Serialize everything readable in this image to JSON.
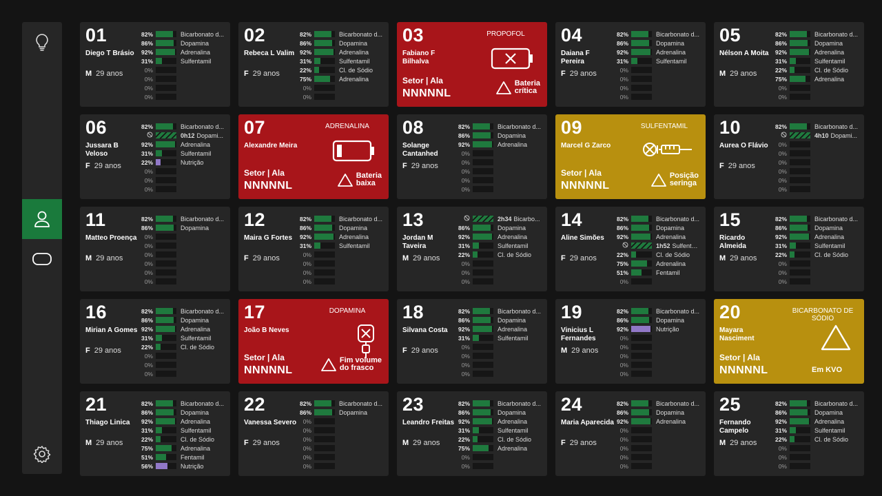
{
  "sidebar": {
    "items": [
      {
        "icon": "lightbulb-icon",
        "active": false
      },
      {
        "icon": "user-icon",
        "active": true
      },
      {
        "icon": "pill-icon",
        "active": false
      },
      {
        "icon": "gear-icon",
        "active": false
      }
    ]
  },
  "colors": {
    "bar_green": "#1f7a3e",
    "bar_purple": "#9178c7",
    "alarm_red": "#a8151a",
    "alarm_yellow": "#b8900f",
    "active_green": "#1a7a3c"
  },
  "beds": [
    {
      "num": "01",
      "name": "Diego T Brásio",
      "sex": "M",
      "age": "29 anos",
      "drugs": [
        [
          "82%",
          "Bicarbonato d..."
        ],
        [
          "86%",
          "Dopamina"
        ],
        [
          "92%",
          "Adrenalina"
        ],
        [
          "31%",
          "Sulfentamil"
        ],
        [
          "0%",
          ""
        ],
        [
          "0%",
          ""
        ],
        [
          "0%",
          ""
        ],
        [
          "0%",
          ""
        ]
      ]
    },
    {
      "num": "02",
      "name": "Rebeca L Valim",
      "sex": "F",
      "age": "29 anos",
      "drugs": [
        [
          "82%",
          "Bicarbonato d..."
        ],
        [
          "86%",
          "Dopamina"
        ],
        [
          "92%",
          "Adrenalina"
        ],
        [
          "31%",
          "Sulfentamil"
        ],
        [
          "22%",
          "Cl. de Sódio"
        ],
        [
          "75%",
          "Adrenalina"
        ],
        [
          "0%",
          ""
        ],
        [
          "0%",
          ""
        ]
      ]
    },
    {
      "num": "03",
      "name": "Fabiano F Bilhalva",
      "alarm": "red",
      "alarm_drug": "PROPOFOL",
      "alarm_icon": "battery-critical-icon",
      "setor": "Setor  |  Ala",
      "code": "NNNNNL",
      "alarm_msg": [
        "Bateria",
        "crítica"
      ]
    },
    {
      "num": "04",
      "name": "Daiana F Pereira",
      "sex": "F",
      "age": "29 anos",
      "drugs": [
        [
          "82%",
          "Bicarbonato d..."
        ],
        [
          "86%",
          "Dopamina"
        ],
        [
          "92%",
          "Adrenalina"
        ],
        [
          "31%",
          "Sulfentamil"
        ],
        [
          "0%",
          ""
        ],
        [
          "0%",
          ""
        ],
        [
          "0%",
          ""
        ],
        [
          "0%",
          ""
        ]
      ]
    },
    {
      "num": "05",
      "name": "Nélson A Moita",
      "sex": "M",
      "age": "29 anos",
      "drugs": [
        [
          "82%",
          "Bicarbonato d..."
        ],
        [
          "86%",
          "Dopamina"
        ],
        [
          "92%",
          "Adrenalina"
        ],
        [
          "31%",
          "Sulfentamil"
        ],
        [
          "22%",
          "Cl. de Sódio"
        ],
        [
          "75%",
          "Adrenalina"
        ],
        [
          "0%",
          ""
        ],
        [
          "0%",
          ""
        ]
      ]
    },
    {
      "num": "06",
      "name": "Jussara B Veloso",
      "sex": "F",
      "age": "29 anos",
      "drugs": [
        [
          "82%",
          "Bicarbonato d..."
        ],
        [
          "P",
          "0h12",
          "Dopami..."
        ],
        [
          "92%",
          "Adrenalina"
        ],
        [
          "31%",
          "Sulfentamil"
        ],
        [
          "22%",
          "Nutrição",
          "purple"
        ],
        [
          "0%",
          ""
        ],
        [
          "0%",
          ""
        ],
        [
          "0%",
          ""
        ]
      ]
    },
    {
      "num": "07",
      "name": "Alexandre Meira",
      "alarm": "red",
      "alarm_drug": "ADRENALINA",
      "alarm_icon": "battery-low-icon",
      "setor": "Setor  |  Ala",
      "code": "NNNNNL",
      "alarm_msg": [
        "Bateria",
        "baixa"
      ]
    },
    {
      "num": "08",
      "name": "Solange Cantanhed",
      "sex": "F",
      "age": "29 anos",
      "drugs": [
        [
          "82%",
          "Bicarbonato d..."
        ],
        [
          "86%",
          "Dopamina"
        ],
        [
          "92%",
          "Adrenalina"
        ],
        [
          "0%",
          ""
        ],
        [
          "0%",
          ""
        ],
        [
          "0%",
          ""
        ],
        [
          "0%",
          ""
        ],
        [
          "0%",
          ""
        ]
      ]
    },
    {
      "num": "09",
      "name": "Marcel G Zarco",
      "alarm": "yellow",
      "alarm_drug": "SULFENTAMIL",
      "alarm_icon": "syringe-icon",
      "setor": "Setor  |  Ala",
      "code": "NNNNNL",
      "alarm_msg": [
        "Posição",
        "seringa"
      ]
    },
    {
      "num": "10",
      "name": "Aurea O Flávio",
      "sex": "F",
      "age": "29 anos",
      "drugs": [
        [
          "82%",
          "Bicarbonato d..."
        ],
        [
          "P",
          "4h10",
          "Dopami..."
        ],
        [
          "0%",
          ""
        ],
        [
          "0%",
          ""
        ],
        [
          "0%",
          ""
        ],
        [
          "0%",
          ""
        ],
        [
          "0%",
          ""
        ],
        [
          "0%",
          ""
        ]
      ]
    },
    {
      "num": "11",
      "name": "Matteo Proença",
      "sex": "M",
      "age": "29 anos",
      "drugs": [
        [
          "82%",
          "Bicarbonato d..."
        ],
        [
          "86%",
          "Dopamina"
        ],
        [
          "0%",
          ""
        ],
        [
          "0%",
          ""
        ],
        [
          "0%",
          ""
        ],
        [
          "0%",
          ""
        ],
        [
          "0%",
          ""
        ],
        [
          "0%",
          ""
        ]
      ]
    },
    {
      "num": "12",
      "name": "Maira G Fortes",
      "sex": "F",
      "age": "29 anos",
      "drugs": [
        [
          "82%",
          "Bicarbonato d..."
        ],
        [
          "86%",
          "Dopamina"
        ],
        [
          "92%",
          "Adrenalina"
        ],
        [
          "31%",
          "Sulfentamil"
        ],
        [
          "0%",
          ""
        ],
        [
          "0%",
          ""
        ],
        [
          "0%",
          ""
        ],
        [
          "0%",
          ""
        ]
      ]
    },
    {
      "num": "13",
      "name": "Jordan M Taveira",
      "sex": "M",
      "age": "29 anos",
      "drugs": [
        [
          "P",
          "2h34",
          "Bicarbo..."
        ],
        [
          "86%",
          "Dopamina"
        ],
        [
          "92%",
          "Adrenalina"
        ],
        [
          "31%",
          "Sulfentamil"
        ],
        [
          "22%",
          "Cl. de Sódio"
        ],
        [
          "0%",
          ""
        ],
        [
          "0%",
          ""
        ],
        [
          "0%",
          ""
        ]
      ]
    },
    {
      "num": "14",
      "name": "Aline Simões",
      "sex": "F",
      "age": "29 anos",
      "drugs": [
        [
          "82%",
          "Bicarbonato d..."
        ],
        [
          "86%",
          "Dopamina"
        ],
        [
          "92%",
          "Adrenalina"
        ],
        [
          "P",
          "1h52",
          "Sulfenta..."
        ],
        [
          "22%",
          "Cl. de Sódio"
        ],
        [
          "75%",
          "Adrenalina"
        ],
        [
          "51%",
          "Fentamil"
        ],
        [
          "0%",
          ""
        ]
      ]
    },
    {
      "num": "15",
      "name": "Ricardo Almeida",
      "sex": "M",
      "age": "29 anos",
      "drugs": [
        [
          "82%",
          "Bicarbonato d..."
        ],
        [
          "86%",
          "Dopamina"
        ],
        [
          "92%",
          "Adrenalina"
        ],
        [
          "31%",
          "Sulfentamil"
        ],
        [
          "22%",
          "Cl. de Sódio"
        ],
        [
          "0%",
          ""
        ],
        [
          "0%",
          ""
        ],
        [
          "0%",
          ""
        ]
      ]
    },
    {
      "num": "16",
      "name": "Mirian A Gomes",
      "sex": "F",
      "age": "29 anos",
      "drugs": [
        [
          "82%",
          "Bicarbonato d..."
        ],
        [
          "86%",
          "Dopamina"
        ],
        [
          "92%",
          "Adrenalina"
        ],
        [
          "31%",
          "Sulfentamil"
        ],
        [
          "22%",
          "Cl. de Sódio"
        ],
        [
          "0%",
          ""
        ],
        [
          "0%",
          ""
        ],
        [
          "0%",
          ""
        ]
      ]
    },
    {
      "num": "17",
      "name": "João B Neves",
      "alarm": "red",
      "alarm_drug": "DOPAMINA",
      "alarm_icon": "iv-bag-icon",
      "setor": "Setor  |  Ala",
      "code": "NNNNNL",
      "alarm_msg": [
        "Fim volume",
        "do frasco"
      ]
    },
    {
      "num": "18",
      "name": "Silvana Costa",
      "sex": "F",
      "age": "29 anos",
      "drugs": [
        [
          "82%",
          "Bicarbonato d..."
        ],
        [
          "86%",
          "Dopamina"
        ],
        [
          "92%",
          "Adrenalina"
        ],
        [
          "31%",
          "Sulfentamil"
        ],
        [
          "0%",
          ""
        ],
        [
          "0%",
          ""
        ],
        [
          "0%",
          ""
        ],
        [
          "0%",
          ""
        ]
      ]
    },
    {
      "num": "19",
      "name": "Vinicius L Fernandes",
      "sex": "M",
      "age": "29 anos",
      "drugs": [
        [
          "82%",
          "Bicarbonato d..."
        ],
        [
          "86%",
          "Dopamina"
        ],
        [
          "92%",
          "Nutrição",
          "purple"
        ],
        [
          "0%",
          ""
        ],
        [
          "0%",
          ""
        ],
        [
          "0%",
          ""
        ],
        [
          "0%",
          ""
        ],
        [
          "0%",
          ""
        ]
      ]
    },
    {
      "num": "20",
      "name": "Mayara Nasciment",
      "alarm": "yellow",
      "alarm_drug": "BICARBONATO DE SÓDIO",
      "alarm_icon": "warning-icon",
      "setor": "Setor  |  Ala",
      "code": "NNNNNL",
      "kvo": "Em KVO"
    },
    {
      "num": "21",
      "name": "Thiago Linica",
      "sex": "M",
      "age": "29 anos",
      "drugs": [
        [
          "82%",
          "Bicarbonato d..."
        ],
        [
          "86%",
          "Dopamina"
        ],
        [
          "92%",
          "Adrenalina"
        ],
        [
          "31%",
          "Sulfentamil"
        ],
        [
          "22%",
          "Cl. de Sódio"
        ],
        [
          "75%",
          "Adrenalina"
        ],
        [
          "51%",
          "Fentamil"
        ],
        [
          "56%",
          "Nutrição",
          "purple"
        ]
      ]
    },
    {
      "num": "22",
      "name": "Vanessa Severo",
      "sex": "F",
      "age": "29 anos",
      "drugs": [
        [
          "82%",
          "Bicarbonato d..."
        ],
        [
          "86%",
          "Dopamina"
        ],
        [
          "0%",
          ""
        ],
        [
          "0%",
          ""
        ],
        [
          "0%",
          ""
        ],
        [
          "0%",
          ""
        ],
        [
          "0%",
          ""
        ],
        [
          "0%",
          ""
        ]
      ]
    },
    {
      "num": "23",
      "name": "Leandro Freitas",
      "sex": "M",
      "age": "29 anos",
      "drugs": [
        [
          "82%",
          "Bicarbonato d..."
        ],
        [
          "86%",
          "Dopamina"
        ],
        [
          "92%",
          "Adrenalina"
        ],
        [
          "31%",
          "Sulfentamil"
        ],
        [
          "22%",
          "Cl. de Sódio"
        ],
        [
          "75%",
          "Adrenalina"
        ],
        [
          "0%",
          ""
        ],
        [
          "0%",
          ""
        ]
      ]
    },
    {
      "num": "24",
      "name": "Maria Aparecida",
      "sex": "F",
      "age": "29 anos",
      "drugs": [
        [
          "82%",
          "Bicarbonato d..."
        ],
        [
          "86%",
          "Dopamina"
        ],
        [
          "92%",
          "Adrenalina"
        ],
        [
          "0%",
          ""
        ],
        [
          "0%",
          ""
        ],
        [
          "0%",
          ""
        ],
        [
          "0%",
          ""
        ],
        [
          "0%",
          ""
        ]
      ]
    },
    {
      "num": "25",
      "name": "Fernando Campelo",
      "sex": "M",
      "age": "29 anos",
      "drugs": [
        [
          "82%",
          "Bicarbonato d..."
        ],
        [
          "86%",
          "Dopamina"
        ],
        [
          "92%",
          "Adrenalina"
        ],
        [
          "31%",
          "Sulfentamil"
        ],
        [
          "22%",
          "Cl. de Sódio"
        ],
        [
          "0%",
          ""
        ],
        [
          "0%",
          ""
        ],
        [
          "0%",
          ""
        ]
      ]
    }
  ]
}
